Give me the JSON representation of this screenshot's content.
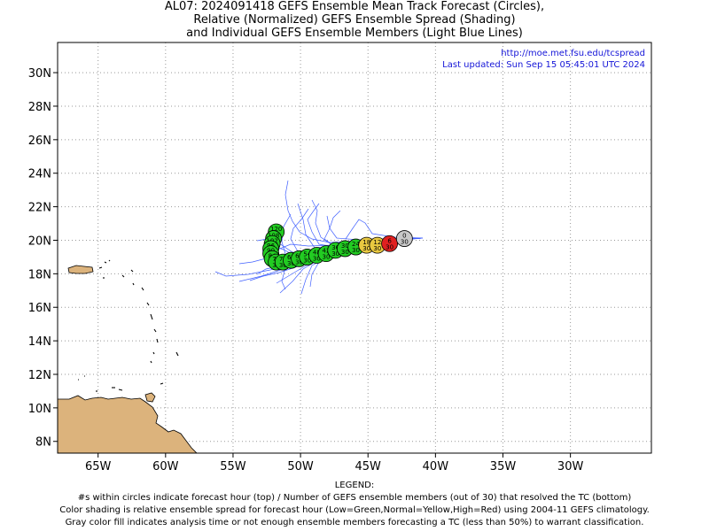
{
  "title": {
    "line1": "AL07: 2024091418 GEFS Ensemble Mean Track Forecast (Circles),",
    "line2": "Relative (Normalized) GEFS Ensemble Spread (Shading)",
    "line3": "and Individual GEFS Ensemble Members (Light Blue Lines)"
  },
  "credit": {
    "url": "http://moe.met.fsu.edu/tcspread",
    "updated": "Last updated: Sun Sep 15 05:45:01 UTC 2024"
  },
  "axes": {
    "lon_range": [
      -68,
      -24
    ],
    "lat_range": [
      7.3,
      31.8
    ],
    "lat_ticks": [
      {
        "v": 30,
        "label": "30N"
      },
      {
        "v": 28,
        "label": "28N"
      },
      {
        "v": 26,
        "label": "26N"
      },
      {
        "v": 24,
        "label": "24N"
      },
      {
        "v": 22,
        "label": "22N"
      },
      {
        "v": 20,
        "label": "20N"
      },
      {
        "v": 18,
        "label": "18N"
      },
      {
        "v": 16,
        "label": "16N"
      },
      {
        "v": 14,
        "label": "14N"
      },
      {
        "v": 12,
        "label": "12N"
      },
      {
        "v": 10,
        "label": "10N"
      },
      {
        "v": 8,
        "label": "8N"
      }
    ],
    "lon_ticks": [
      {
        "v": -65,
        "label": "65W"
      },
      {
        "v": -60,
        "label": "60W"
      },
      {
        "v": -55,
        "label": "55W"
      },
      {
        "v": -50,
        "label": "50W"
      },
      {
        "v": -45,
        "label": "45W"
      },
      {
        "v": -40,
        "label": "40W"
      },
      {
        "v": -35,
        "label": "35W"
      },
      {
        "v": -30,
        "label": "30W"
      }
    ],
    "grid": "dotted"
  },
  "colors": {
    "low": "#22cc22",
    "normal": "#e8c840",
    "high": "#e02020",
    "analysis": "#c8c8c8",
    "members": "#4060ff",
    "land": "#dcb37c"
  },
  "mean_track": [
    {
      "lon": -42.3,
      "lat": 20.1,
      "hour": "0",
      "members": "30",
      "spread": "analysis"
    },
    {
      "lon": -43.4,
      "lat": 19.8,
      "hour": "6",
      "members": "30",
      "spread": "high"
    },
    {
      "lon": -44.3,
      "lat": 19.7,
      "hour": "12",
      "members": "30",
      "spread": "normal"
    },
    {
      "lon": -45.1,
      "lat": 19.7,
      "hour": "18",
      "members": "30",
      "spread": "normal"
    },
    {
      "lon": -45.9,
      "lat": 19.6,
      "hour": "24",
      "members": "30",
      "spread": "low"
    },
    {
      "lon": -46.7,
      "lat": 19.5,
      "hour": "30",
      "members": "30",
      "spread": "low"
    },
    {
      "lon": -47.4,
      "lat": 19.4,
      "hour": "36",
      "members": "30",
      "spread": "low"
    },
    {
      "lon": -48.1,
      "lat": 19.2,
      "hour": "42",
      "members": "30",
      "spread": "low"
    },
    {
      "lon": -48.8,
      "lat": 19.1,
      "hour": "48",
      "members": "30",
      "spread": "low"
    },
    {
      "lon": -49.5,
      "lat": 19.0,
      "hour": "54",
      "members": "30",
      "spread": "low"
    },
    {
      "lon": -50.1,
      "lat": 18.9,
      "hour": "60",
      "members": "30",
      "spread": "low"
    },
    {
      "lon": -50.7,
      "lat": 18.8,
      "hour": "66",
      "members": "30",
      "spread": "low"
    },
    {
      "lon": -51.3,
      "lat": 18.7,
      "hour": "72",
      "members": "30",
      "spread": "low"
    },
    {
      "lon": -51.8,
      "lat": 18.7,
      "hour": "78",
      "members": "30",
      "spread": "low"
    },
    {
      "lon": -52.1,
      "lat": 18.9,
      "hour": "84",
      "members": "30",
      "spread": "low"
    },
    {
      "lon": -52.2,
      "lat": 19.2,
      "hour": "90",
      "members": "30",
      "spread": "low"
    },
    {
      "lon": -52.2,
      "lat": 19.5,
      "hour": "96",
      "members": "30",
      "spread": "low"
    },
    {
      "lon": -52.1,
      "lat": 19.8,
      "hour": "102",
      "members": "30",
      "spread": "low"
    },
    {
      "lon": -52.0,
      "lat": 20.1,
      "hour": "108",
      "members": "30",
      "spread": "low"
    },
    {
      "lon": -51.8,
      "lat": 20.5,
      "hour": "120",
      "members": "30",
      "spread": "low"
    }
  ],
  "legend": {
    "heading": "LEGEND:",
    "line1": "#s within circles indicate forecast hour (top) / Number of GEFS ensemble members (out of 30) that resolved the TC (bottom)",
    "line2": "Color shading is relative ensemble spread for forecast hour (Low=Green,Normal=Yellow,High=Red) using 2004-11 GEFS climatology.",
    "line3": "Gray color fill indicates analysis time or not enough ensemble members forecasting a TC (less than 50%) to warrant classification."
  }
}
